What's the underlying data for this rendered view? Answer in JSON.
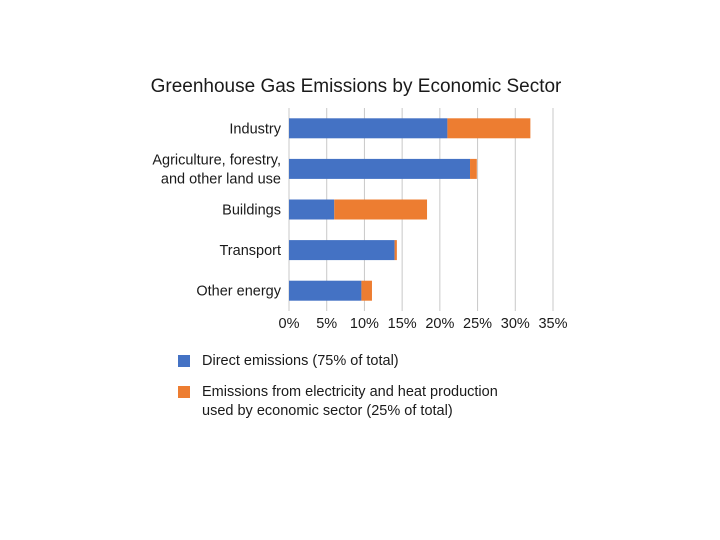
{
  "chart_data": {
    "type": "bar",
    "orientation": "horizontal",
    "stacked": true,
    "title": "Greenhouse Gas Emissions by Economic Sector",
    "categories": [
      [
        "Industry"
      ],
      [
        "Agriculture, forestry,",
        "and other land use"
      ],
      [
        "Buildings"
      ],
      [
        "Transport"
      ],
      [
        "Other energy"
      ]
    ],
    "series": [
      {
        "name": "Direct emissions (75% of total)",
        "color": "#4472c4",
        "values": [
          21,
          24,
          6,
          14,
          9.6
        ]
      },
      {
        "name": "Emissions from electricity and heat production used by economic sector (25% of total)",
        "color": "#ed7d31",
        "values": [
          11,
          0.9,
          12.3,
          0.3,
          1.4
        ]
      }
    ],
    "legend_lines": [
      [
        "Direct emissions (75% of total)"
      ],
      [
        "Emissions from electricity and heat production",
        "used by economic sector (25% of total)"
      ]
    ],
    "x_ticks": [
      "0%",
      "5%",
      "10%",
      "15%",
      "20%",
      "25%",
      "30%",
      "35%"
    ],
    "xlim": [
      0,
      35
    ],
    "grid": true,
    "legend_position": "bottom"
  }
}
